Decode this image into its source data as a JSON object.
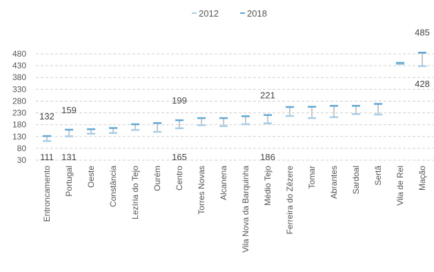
{
  "chart_data": {
    "type": "range",
    "legend": {
      "position": "top-center"
    },
    "series": [
      {
        "name": "2012",
        "color": "#a8cde6"
      },
      {
        "name": "2018",
        "color": "#5ea7d6"
      }
    ],
    "connector_color": "#c8c8c8",
    "categories": [
      "Entroncamento",
      "Portugal",
      "Oeste",
      "Constância",
      "Lezíria do Tejo",
      "Ourém",
      "Centro",
      "Torres Novas",
      "Alcanena",
      "Vila Nova da Barquinha",
      "Médio Tejo",
      "Ferreira do Zêzere",
      "Tomar",
      "Abrantes",
      "Sardoal",
      "Sertã",
      "Vila de Rei",
      "Mação"
    ],
    "values_2012": [
      111,
      131,
      142,
      145,
      158,
      150,
      165,
      178,
      174,
      182,
      186,
      217,
      208,
      212,
      225,
      223,
      437,
      428
    ],
    "values_2018": [
      132,
      159,
      161,
      166,
      182,
      187,
      199,
      208,
      208,
      216,
      221,
      255,
      256,
      260,
      260,
      268,
      442,
      485
    ],
    "data_labels": [
      {
        "category": "Entroncamento",
        "series": "2018",
        "text": "132"
      },
      {
        "category": "Entroncamento",
        "series": "2012",
        "text": "111"
      },
      {
        "category": "Portugal",
        "series": "2018",
        "text": "159"
      },
      {
        "category": "Portugal",
        "series": "2012",
        "text": "131"
      },
      {
        "category": "Centro",
        "series": "2018",
        "text": "199"
      },
      {
        "category": "Centro",
        "series": "2012",
        "text": "165"
      },
      {
        "category": "Médio Tejo",
        "series": "2018",
        "text": "221"
      },
      {
        "category": "Médio Tejo",
        "series": "2012",
        "text": "186"
      },
      {
        "category": "Mação",
        "series": "2018",
        "text": "485"
      },
      {
        "category": "Mação",
        "series": "2012",
        "text": "428"
      }
    ],
    "yticks": [
      30,
      80,
      130,
      180,
      230,
      280,
      330,
      380,
      430,
      480
    ],
    "ylim": [
      30,
      480
    ],
    "grid": true,
    "title": "",
    "xlabel": "",
    "ylabel": ""
  }
}
